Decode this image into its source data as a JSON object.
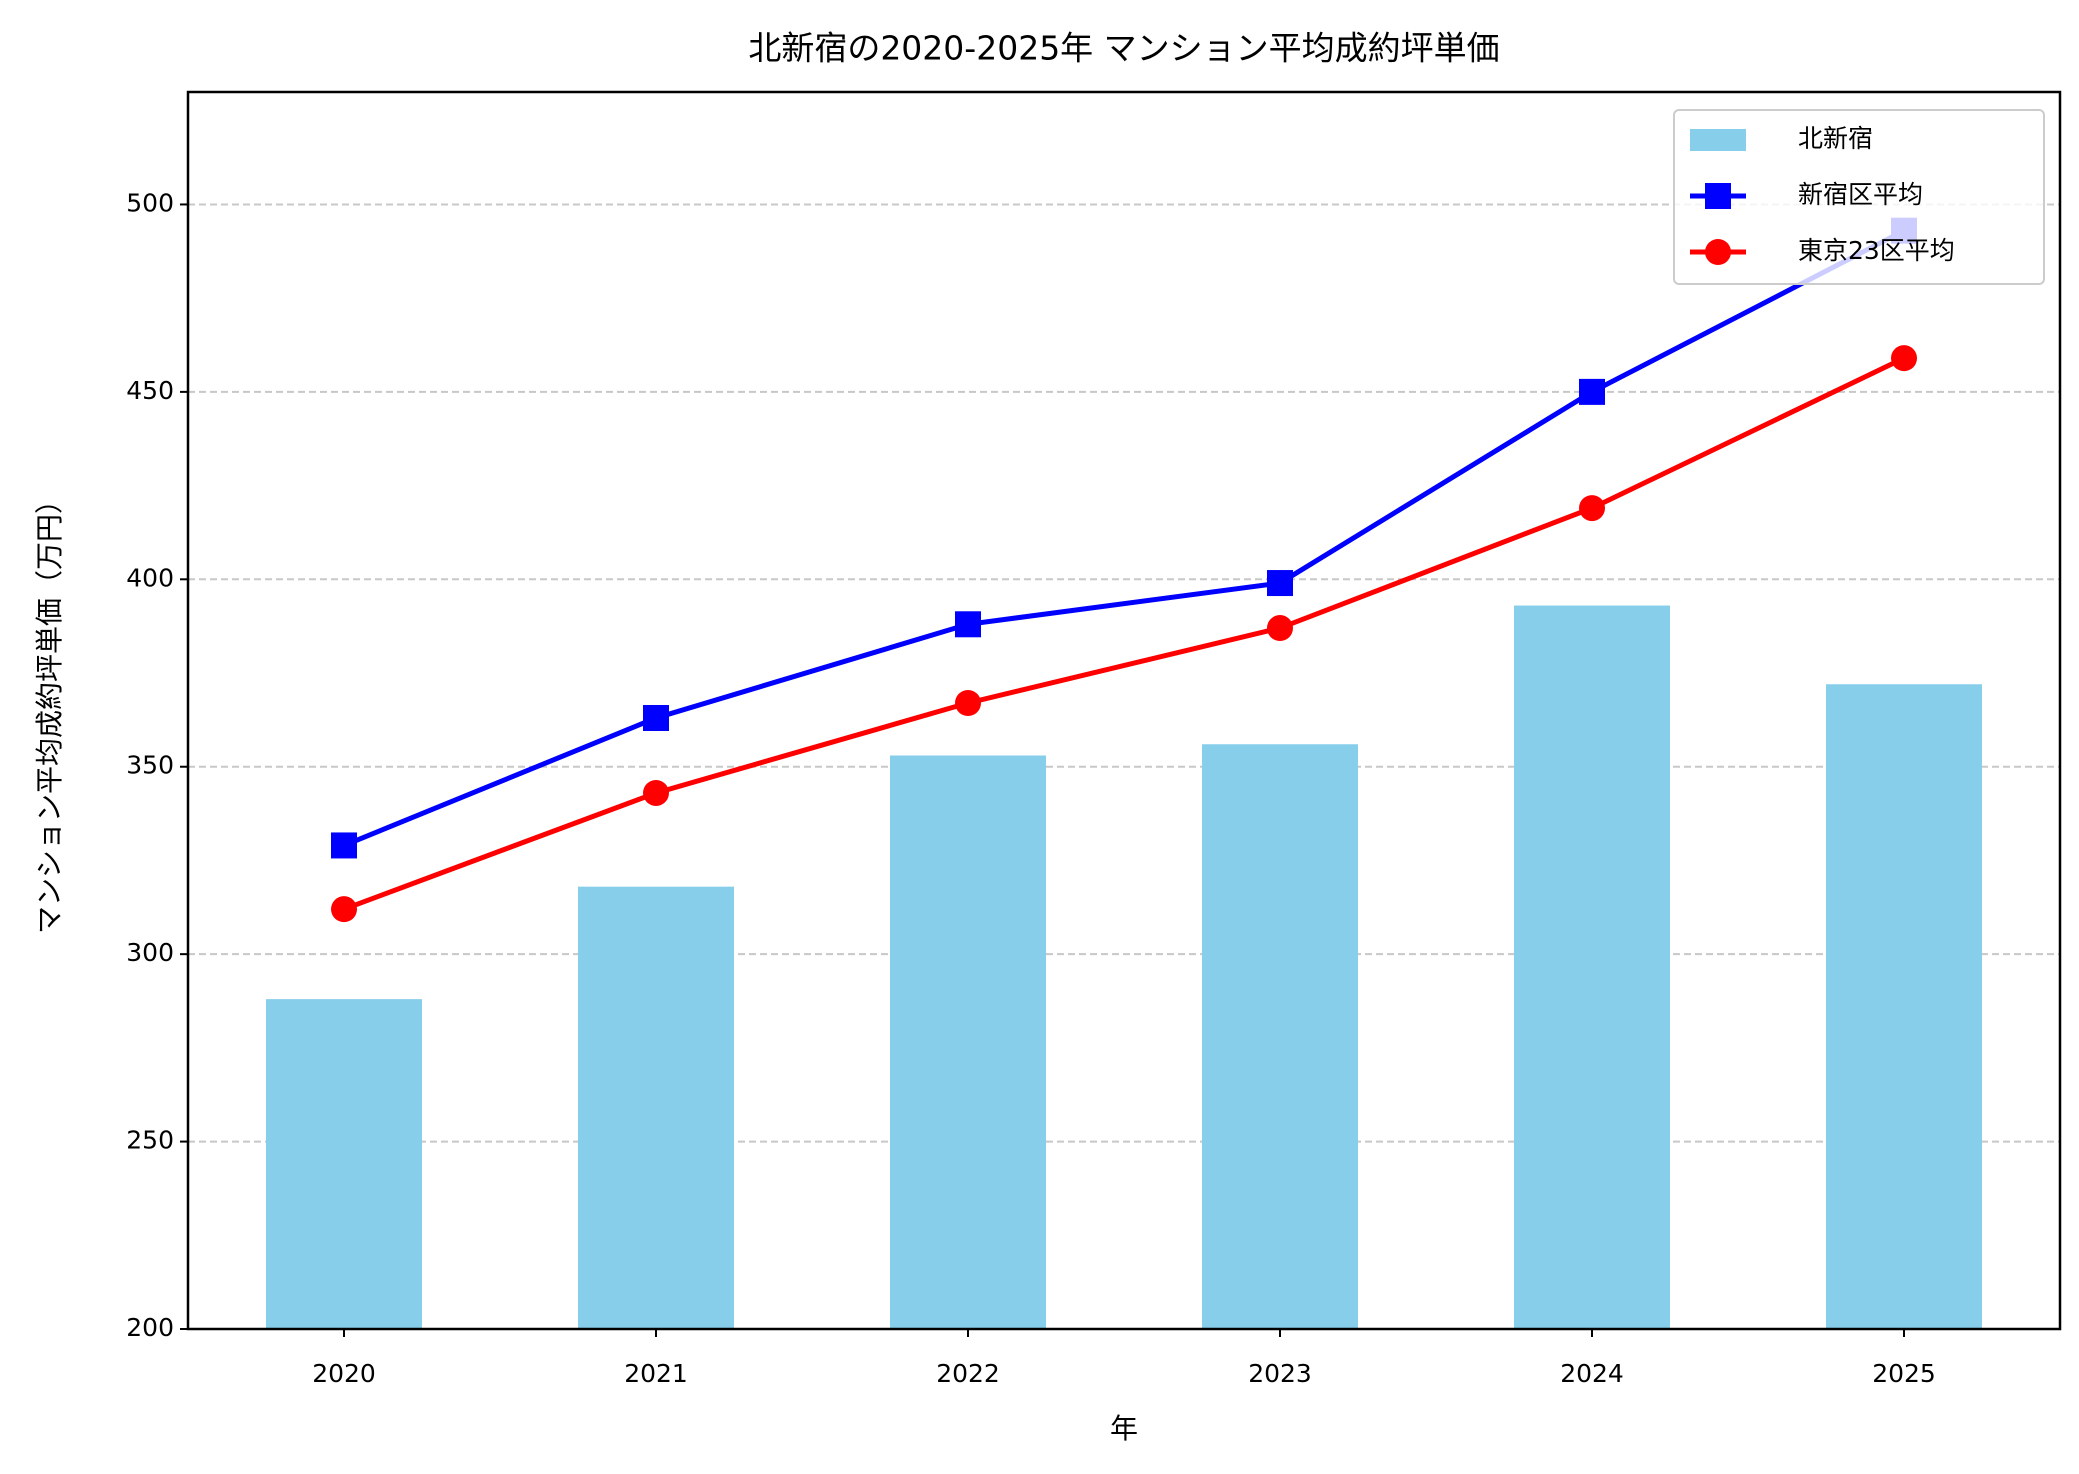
{
  "chart_data": {
    "type": "bar",
    "title": "北新宿の2020-2025年 マンション平均成約坪単価",
    "x_label": "年",
    "y_label": "マンション平均成約坪単価（万円）",
    "categories": [
      "2020",
      "2021",
      "2022",
      "2023",
      "2024",
      "2025"
    ],
    "series": [
      {
        "name": "北新宿",
        "type": "bar",
        "color": "#87ceeb",
        "values": [
          288,
          318,
          353,
          356,
          393,
          372
        ]
      },
      {
        "name": "新宿区平均",
        "type": "line",
        "marker": "square",
        "color": "#0000ff",
        "values": [
          329,
          363,
          388,
          399,
          450,
          493
        ]
      },
      {
        "name": "東京23区平均",
        "type": "line",
        "marker": "circle",
        "color": "#ff0000",
        "values": [
          312,
          343,
          367,
          387,
          419,
          459
        ]
      }
    ],
    "ylim": [
      200,
      530
    ],
    "yticks": [
      200,
      250,
      300,
      350,
      400,
      450,
      500
    ],
    "grid": true,
    "legend": "upper right"
  }
}
